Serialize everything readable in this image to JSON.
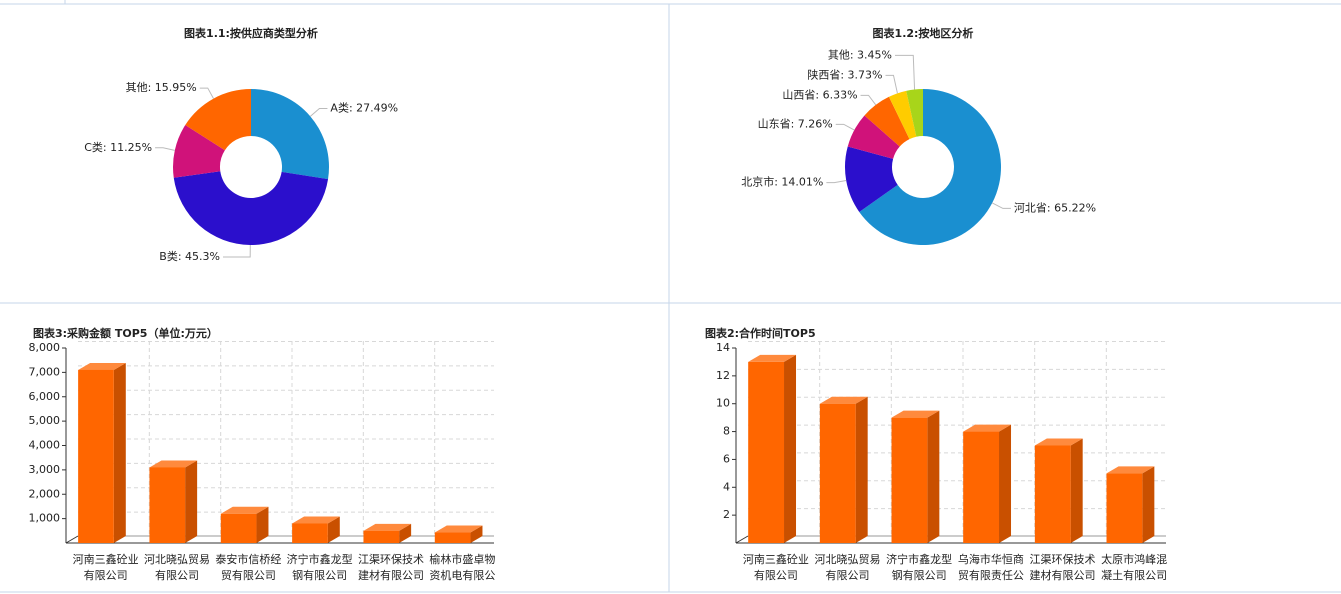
{
  "chart_data": [
    {
      "type": "pie",
      "title": "图表1.1:按供应商类型分析",
      "categories": [
        "A类",
        "B类",
        "C类",
        "其他"
      ],
      "values": [
        27.49,
        45.3,
        11.25,
        15.95
      ],
      "value_labels": [
        ": 27.49%",
        ": 45.3%",
        ": 11.25%",
        ": 15.95%"
      ],
      "colors": [
        "#1a8fd0",
        "#2b0fcc",
        "#d0127a",
        "#ff6600"
      ]
    },
    {
      "type": "pie",
      "title": "图表1.2:按地区分析",
      "categories": [
        "河北省",
        "北京市",
        "山东省",
        "山西省",
        "陕西省",
        "其他"
      ],
      "values": [
        65.22,
        14.01,
        7.26,
        6.33,
        3.73,
        3.45
      ],
      "value_labels": [
        ": 65.22%",
        ": 14.01%",
        ": 7.26%",
        ": 6.33%",
        ": 3.73%",
        ": 3.45%"
      ],
      "colors": [
        "#1a8fd0",
        "#2b0fcc",
        "#d0127a",
        "#ff6600",
        "#ffcc00",
        "#a8d51a"
      ]
    },
    {
      "type": "bar",
      "title": "图表3:采购金额 TOP5（单位:万元）",
      "categories": [
        "河南三鑫砼业有限公司",
        "河北晓弘贸易有限公司",
        "泰安市信桥经贸有限公司",
        "济宁市鑫龙型钢有限公司",
        "江渠环保技术建材有限公司",
        "榆林市盛卓物资机电有限公"
      ],
      "values": [
        7100,
        3100,
        1200,
        800,
        500,
        430
      ],
      "color": "#ff6600",
      "ylim": [
        0,
        8000
      ],
      "yticks": [
        {
          "value": 1000,
          "label": "1,000"
        },
        {
          "value": 2000,
          "label": "2,000"
        },
        {
          "value": 3000,
          "label": "3,000"
        },
        {
          "value": 4000,
          "label": "4,000"
        },
        {
          "value": 5000,
          "label": "5,000"
        },
        {
          "value": 6000,
          "label": "6,000"
        },
        {
          "value": 7000,
          "label": "7,000"
        },
        {
          "value": 8000,
          "label": "8,000"
        }
      ],
      "grid": true
    },
    {
      "type": "bar",
      "title": "图表2:合作时间TOP5",
      "categories": [
        "河南三鑫砼业有限公司",
        "河北晓弘贸易有限公司",
        "济宁市鑫龙型钢有限公司",
        "乌海市华恒商贸有限责任公",
        "江渠环保技术建材有限公司",
        "太原市鸿峰混凝土有限公司"
      ],
      "values": [
        13,
        10,
        9,
        8,
        7,
        5
      ],
      "color": "#ff6600",
      "ylim": [
        0,
        14
      ],
      "yticks": [
        2,
        4,
        6,
        8,
        10,
        12,
        14
      ],
      "grid": true
    }
  ]
}
